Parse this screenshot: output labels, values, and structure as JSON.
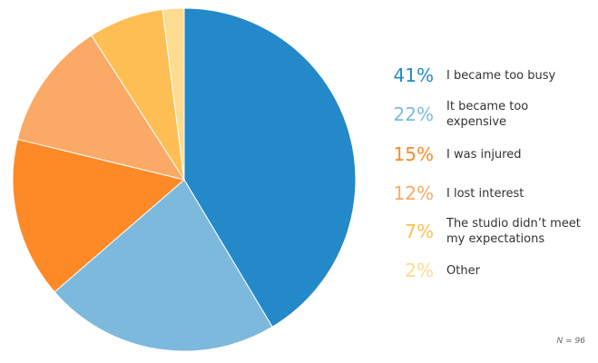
{
  "chart_data": {
    "type": "pie",
    "categories": [
      "I became too busy",
      "It became too expensive",
      "I was injured",
      "I lost interest",
      "The studio didn’t meet my expectations",
      "Other"
    ],
    "values": [
      41,
      22,
      15,
      12,
      7,
      2
    ],
    "value_labels": [
      "41%",
      "22%",
      "15%",
      "12%",
      "7%",
      "2%"
    ],
    "colors": [
      "#2389c9",
      "#7db9dc",
      "#fd8a27",
      "#fba966",
      "#fdbf54",
      "#fddb8f"
    ],
    "note": "N = 96"
  }
}
